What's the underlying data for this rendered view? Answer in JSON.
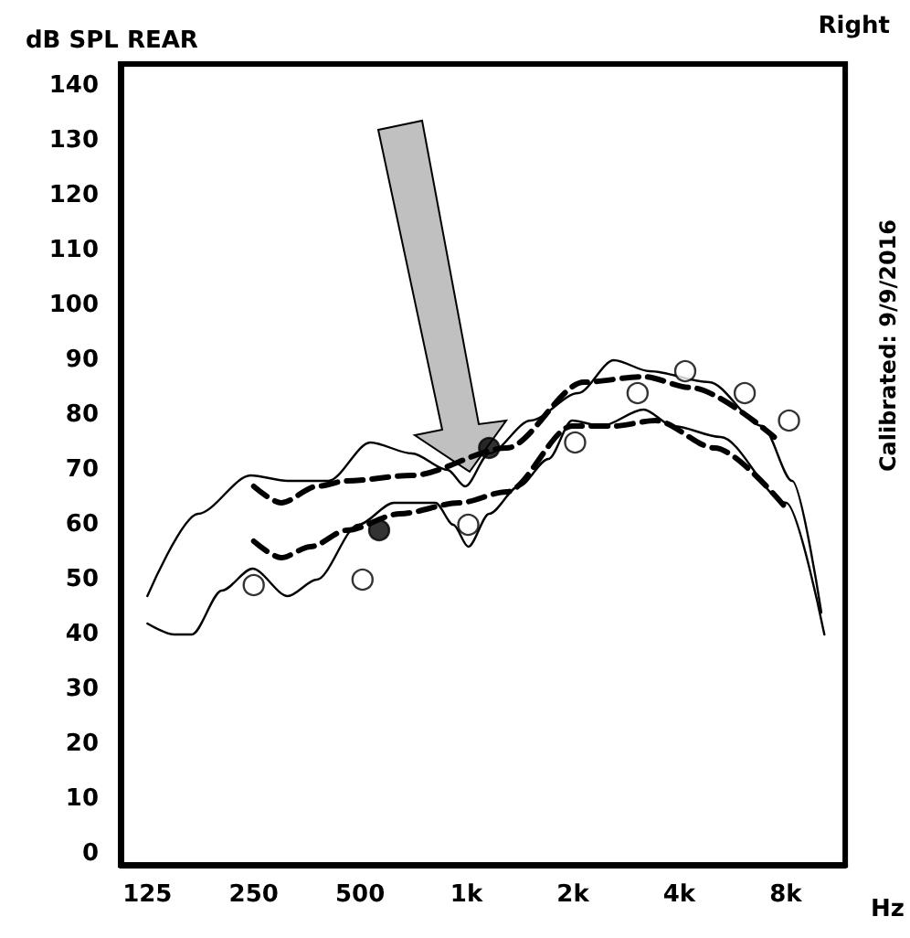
{
  "chart_data": {
    "type": "line",
    "title": "Right",
    "ylabel": "dB SPL REAR",
    "xlabel": "Hz",
    "annotations": [
      "Calibrated: 9/9/2016"
    ],
    "log": "x",
    "xlim": [
      105,
      11800
    ],
    "ylim": [
      -2,
      144
    ],
    "xticks": [
      125,
      250,
      500,
      {
        "value": 1000,
        "label": "1k"
      },
      {
        "value": 2000,
        "label": "2k"
      },
      {
        "value": 4000,
        "label": "4k"
      },
      {
        "value": 8000,
        "label": "8k"
      }
    ],
    "yticks": [
      0,
      10,
      20,
      30,
      40,
      50,
      60,
      70,
      80,
      90,
      100,
      110,
      120,
      130,
      140
    ],
    "grid": false,
    "marker": "none",
    "series": [
      {
        "line_style": "solid",
        "color": "#000000",
        "x": [
          125,
          174,
          245,
          312,
          407,
          534,
          701,
          884,
          992,
          1159,
          1519,
          2070,
          2612,
          3296,
          4860,
          6880,
          8350,
          10100
        ],
        "values": [
          47,
          62,
          69,
          68,
          68,
          75,
          73,
          70,
          67,
          73,
          79,
          84,
          90,
          88,
          86,
          78,
          68,
          44
        ]
      },
      {
        "line_style": "solid",
        "color": "#000000",
        "x": [
          125,
          149,
          167,
          203,
          248,
          312,
          377,
          494,
          623,
          817,
          918,
          1012,
          1159,
          1406,
          1707,
          1990,
          2410,
          3170,
          3850,
          5240,
          8030,
          10300
        ],
        "values": [
          42,
          40,
          40,
          48,
          52,
          47,
          50,
          60,
          64,
          64,
          60,
          56,
          62,
          67,
          72,
          79,
          78,
          81,
          78,
          76,
          64,
          40
        ]
      },
      {
        "line_style": "dashed",
        "color": "#000000",
        "x": [
          250,
          299,
          377,
          458,
          701,
          955,
          1300,
          2150,
          3170,
          4320,
          7430
        ],
        "values": [
          67,
          64,
          67,
          68,
          69,
          null,
          74,
          86,
          87,
          85,
          76
        ]
      },
      {
        "line_style": "dashed",
        "color": "#000000",
        "x": [
          250,
          299,
          362,
          458,
          648,
          955,
          1300,
          1990,
          2612,
          3430,
          5040,
          8030
        ],
        "values": [
          57,
          54,
          56,
          59,
          62,
          64,
          66,
          78,
          78,
          79,
          74,
          63
        ]
      },
      {
        "type": "scatter",
        "marker": "circle",
        "color": "#ffffff",
        "x": [
          250,
          508,
          1012,
          2030,
          3050,
          4160,
          6130,
          8180
        ],
        "values": [
          49,
          50,
          60,
          75,
          84,
          88,
          84,
          79
        ]
      },
      {
        "type": "scatter",
        "marker": "circle",
        "color": "#000000",
        "x": [
          566,
          1159
        ],
        "values": [
          59,
          74
        ]
      }
    ]
  }
}
